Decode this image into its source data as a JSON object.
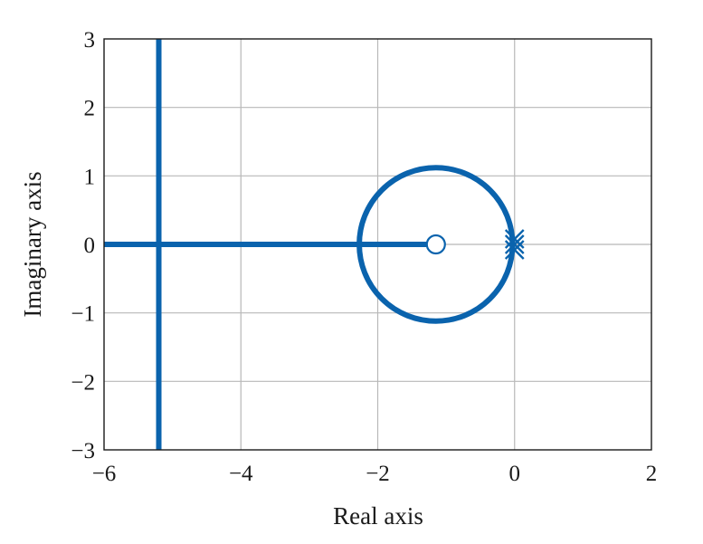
{
  "chart_data": {
    "type": "line",
    "title": "",
    "xlabel": "Real axis",
    "ylabel": "Imaginary axis",
    "xlim": [
      -6,
      2
    ],
    "ylim": [
      -3,
      3
    ],
    "xticks": [
      -6,
      -4,
      -2,
      0,
      2
    ],
    "yticks": [
      -3,
      -2,
      -1,
      0,
      1,
      2,
      3
    ],
    "xtick_labels": [
      "−6",
      "−4",
      "−2",
      "0",
      "2"
    ],
    "ytick_labels": [
      "−3",
      "−2",
      "−1",
      "0",
      "1",
      "2",
      "3"
    ],
    "grid": true,
    "color": "#0a63ad",
    "series": [
      {
        "kind": "segment",
        "x": [
          -6.0,
          -1.15
        ],
        "y": [
          0,
          0
        ]
      },
      {
        "kind": "circle",
        "center": [
          -1.15,
          0
        ],
        "radius": 1.12
      },
      {
        "kind": "segment",
        "x": [
          -5.2,
          -5.2
        ],
        "y": [
          -3,
          3
        ]
      }
    ],
    "zeros": [
      {
        "x": -1.15,
        "y": 0
      }
    ],
    "poles": [
      {
        "x": 0,
        "y": 0
      },
      {
        "x": 0,
        "y": 0
      },
      {
        "x": 0,
        "y": 0
      }
    ]
  }
}
